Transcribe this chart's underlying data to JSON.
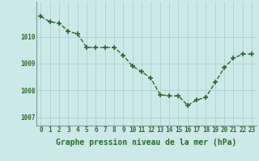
{
  "x": [
    0,
    1,
    2,
    3,
    4,
    5,
    6,
    7,
    8,
    9,
    10,
    11,
    12,
    13,
    14,
    15,
    16,
    17,
    18,
    19,
    20,
    21,
    22,
    23
  ],
  "y": [
    1010.75,
    1010.55,
    1010.5,
    1010.2,
    1010.1,
    1009.6,
    1009.6,
    1009.6,
    1009.6,
    1009.3,
    1008.9,
    1008.7,
    1008.45,
    1007.85,
    1007.8,
    1007.8,
    1007.45,
    1007.65,
    1007.75,
    1008.3,
    1008.85,
    1009.2,
    1009.35,
    1009.35
  ],
  "line_color": "#2d6a2d",
  "marker_color": "#2d6a2d",
  "background_color": "#cce8e8",
  "grid_color": "#aacaca",
  "axis_label_color": "#2d6a2d",
  "xlabel": "Graphe pression niveau de la mer (hPa)",
  "ylim": [
    1006.7,
    1011.3
  ],
  "yticks": [
    1007,
    1008,
    1009,
    1010
  ],
  "xticks": [
    0,
    1,
    2,
    3,
    4,
    5,
    6,
    7,
    8,
    9,
    10,
    11,
    12,
    13,
    14,
    15,
    16,
    17,
    18,
    19,
    20,
    21,
    22,
    23
  ],
  "tick_fontsize": 5.5,
  "xlabel_fontsize": 7.0,
  "marker_size": 4,
  "line_width": 1.0
}
